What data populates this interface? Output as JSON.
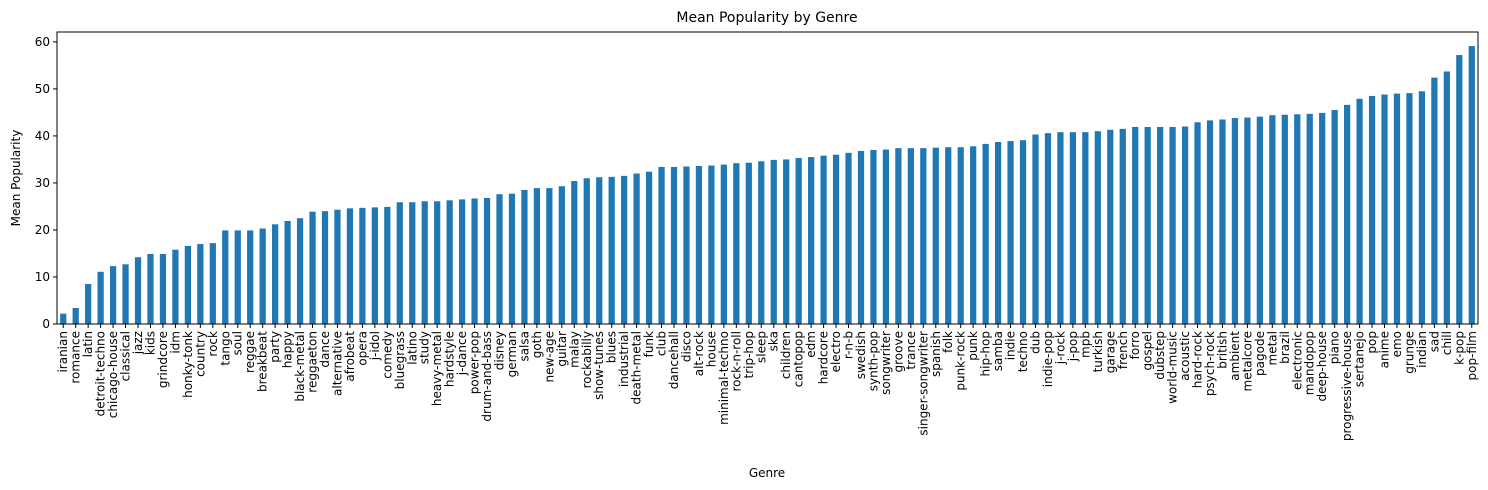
{
  "chart_data": {
    "type": "bar",
    "title": "Mean Popularity by Genre",
    "xlabel": "Genre",
    "ylabel": "Mean Popularity",
    "color": "#1f77b4",
    "categories": [
      "iranian",
      "romance",
      "latin",
      "detroit-techno",
      "chicago-house",
      "classical",
      "jazz",
      "kids",
      "grindcore",
      "idm",
      "honky-tonk",
      "country",
      "rock",
      "tango",
      "soul",
      "reggae",
      "breakbeat",
      "party",
      "happy",
      "black-metal",
      "reggaeton",
      "dance",
      "alternative",
      "afrobeat",
      "opera",
      "j-idol",
      "comedy",
      "bluegrass",
      "latino",
      "study",
      "heavy-metal",
      "hardstyle",
      "j-dance",
      "power-pop",
      "drum-and-bass",
      "disney",
      "german",
      "salsa",
      "goth",
      "new-age",
      "guitar",
      "malay",
      "rockabilly",
      "show-tunes",
      "blues",
      "industrial",
      "death-metal",
      "funk",
      "club",
      "dancehall",
      "disco",
      "alt-rock",
      "house",
      "minimal-techno",
      "rock-n-roll",
      "trip-hop",
      "sleep",
      "ska",
      "children",
      "cantopop",
      "edm",
      "hardcore",
      "electro",
      "r-n-b",
      "swedish",
      "synth-pop",
      "songwriter",
      "groove",
      "trance",
      "singer-songwriter",
      "spanish",
      "folk",
      "punk-rock",
      "punk",
      "hip-hop",
      "samba",
      "indie",
      "techno",
      "dub",
      "indie-pop",
      "j-rock",
      "j-pop",
      "mpb",
      "turkish",
      "garage",
      "french",
      "forro",
      "gospel",
      "dubstep",
      "world-music",
      "acoustic",
      "hard-rock",
      "psych-rock",
      "british",
      "ambient",
      "metalcore",
      "pagode",
      "metal",
      "brazil",
      "electronic",
      "mandopop",
      "deep-house",
      "piano",
      "progressive-house",
      "sertanejo",
      "pop",
      "anime",
      "emo",
      "grunge",
      "indian",
      "sad",
      "chill",
      "k-pop",
      "pop-film"
    ],
    "values": [
      2.2,
      3.4,
      8.5,
      11.1,
      12.3,
      12.7,
      14.2,
      14.9,
      14.9,
      15.8,
      16.6,
      17.0,
      17.2,
      19.9,
      19.9,
      19.9,
      20.3,
      21.2,
      21.9,
      22.5,
      23.9,
      24.0,
      24.3,
      24.6,
      24.7,
      24.8,
      24.9,
      25.9,
      25.9,
      26.1,
      26.1,
      26.3,
      26.5,
      26.7,
      26.8,
      27.6,
      27.7,
      28.5,
      28.9,
      28.9,
      29.3,
      30.4,
      31.0,
      31.2,
      31.3,
      31.5,
      32.0,
      32.4,
      33.4,
      33.4,
      33.5,
      33.6,
      33.7,
      33.9,
      34.2,
      34.3,
      34.6,
      34.9,
      35.0,
      35.3,
      35.5,
      35.8,
      36.0,
      36.4,
      36.8,
      37.0,
      37.1,
      37.4,
      37.4,
      37.4,
      37.5,
      37.6,
      37.6,
      37.8,
      38.3,
      38.7,
      38.9,
      39.1,
      40.3,
      40.6,
      40.8,
      40.8,
      40.8,
      41.0,
      41.3,
      41.5,
      41.9,
      41.9,
      41.9,
      41.9,
      42.0,
      42.9,
      43.3,
      43.5,
      43.8,
      43.9,
      44.1,
      44.4,
      44.5,
      44.6,
      44.7,
      44.9,
      45.5,
      46.6,
      47.9,
      48.5,
      48.8,
      49.0,
      49.1,
      49.5,
      52.4,
      53.7,
      57.2,
      59.1
    ],
    "ylim": [
      0,
      62.1
    ],
    "yticks": [
      0,
      10,
      20,
      30,
      40,
      50,
      60
    ]
  }
}
